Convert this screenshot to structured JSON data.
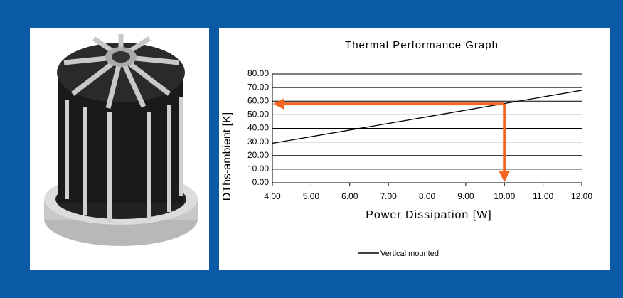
{
  "chart_data": {
    "type": "line",
    "title": "Thermal Performance Graph",
    "x_label": "Power Dissipation [W]",
    "y_label": "DThs-ambient [K]",
    "x": [
      4,
      12
    ],
    "series": [
      {
        "name": "Vertical mounted",
        "color": "#000000",
        "values": [
          29,
          68
        ]
      }
    ],
    "xlim": [
      4,
      12
    ],
    "xticks": [
      {
        "value": 4,
        "label": "4.00"
      },
      {
        "value": 5,
        "label": "5.00"
      },
      {
        "value": 6,
        "label": "6.00"
      },
      {
        "value": 7,
        "label": "7.00"
      },
      {
        "value": 8,
        "label": "8.00"
      },
      {
        "value": 9,
        "label": "9.00"
      },
      {
        "value": 10,
        "label": "10.00"
      },
      {
        "value": 11,
        "label": "11.00"
      },
      {
        "value": 12,
        "label": "12.00"
      }
    ],
    "ylim": [
      0,
      80
    ],
    "yticks": [
      {
        "value": 0,
        "label": "0.00"
      },
      {
        "value": 10,
        "label": "10.00"
      },
      {
        "value": 20,
        "label": "20.00"
      },
      {
        "value": 30,
        "label": "30.00"
      },
      {
        "value": 40,
        "label": "40.00"
      },
      {
        "value": 50,
        "label": "50.00"
      },
      {
        "value": 60,
        "label": "60.00"
      },
      {
        "value": 70,
        "label": "70.00"
      },
      {
        "value": 80,
        "label": "80.00"
      }
    ],
    "grid": true,
    "marker": {
      "x": 10,
      "y": 58,
      "color": "#f26522"
    }
  }
}
